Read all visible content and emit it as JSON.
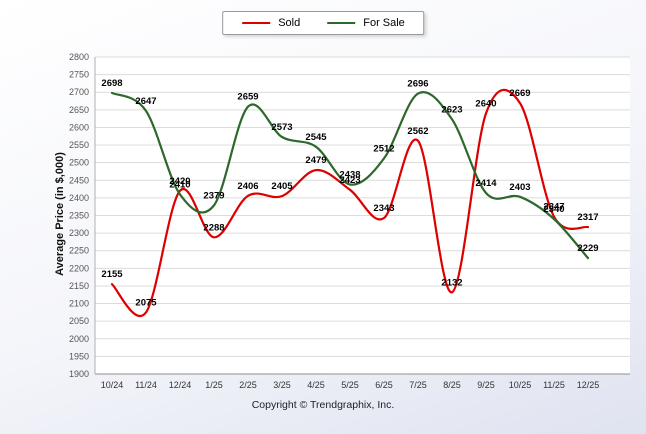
{
  "legend": {
    "items": [
      {
        "label": "Sold",
        "color": "#dd0000"
      },
      {
        "label": "For Sale",
        "color": "#2d682d"
      }
    ]
  },
  "footer": {
    "copyright": "Copyright © Trendgraphix, Inc."
  },
  "chart_data": {
    "type": "line",
    "title": "",
    "xlabel": "",
    "ylabel": "Average Price (in $,000)",
    "categories": [
      "10/24",
      "11/24",
      "12/24",
      "1/25",
      "2/25",
      "3/25",
      "4/25",
      "5/25",
      "6/25",
      "7/25",
      "8/25",
      "9/25",
      "10/25",
      "11/25",
      "12/25"
    ],
    "series": [
      {
        "name": "Sold",
        "color": "#dd0000",
        "values": [
          2155,
          2075,
          2420,
          2288,
          2406,
          2405,
          2479,
          2423,
          2343,
          2562,
          2132,
          2640,
          2669,
          2347,
          2317
        ]
      },
      {
        "name": "For Sale",
        "color": "#2d682d",
        "values": [
          2698,
          2647,
          2410,
          2379,
          2659,
          2573,
          2545,
          2438,
          2512,
          2696,
          2623,
          2414,
          2403,
          2340,
          2229
        ]
      }
    ],
    "ylim": [
      1900,
      2800
    ],
    "ytick_step": 50,
    "grid": true,
    "curve": "smooth",
    "legend_position": "top-center"
  }
}
